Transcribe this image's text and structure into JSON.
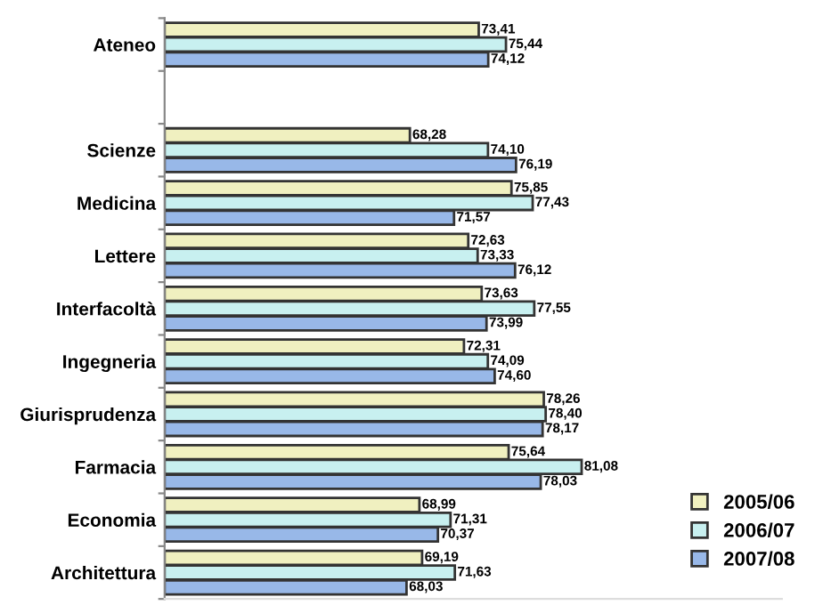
{
  "chart_data": {
    "type": "bar",
    "orientation": "horizontal",
    "categories": [
      "Ateneo",
      null,
      "Scienze",
      "Medicina",
      "Lettere",
      "Interfacoltà",
      "Ingegneria",
      "Giurisprudenza",
      "Farmacia",
      "Economia",
      "Architettura"
    ],
    "xlim": [
      50,
      96
    ],
    "tick_labels": "y",
    "grid": false,
    "legend": "bottom right",
    "series": [
      {
        "name": "2005/06",
        "color": "#f0f0c0",
        "values": [
          73.41,
          null,
          68.28,
          75.85,
          72.63,
          73.63,
          72.31,
          78.26,
          75.64,
          68.99,
          69.19
        ],
        "value_labels": [
          "73,41",
          null,
          "68,28",
          "75,85",
          "72,63",
          "73,63",
          "72,31",
          "78,26",
          "75,64",
          "68,99",
          "69,19"
        ]
      },
      {
        "name": "2006/07",
        "color": "#c8f0f0",
        "values": [
          75.44,
          null,
          74.1,
          77.43,
          73.33,
          77.55,
          74.09,
          78.4,
          81.08,
          71.31,
          71.63
        ],
        "value_labels": [
          "75,44",
          null,
          "74,10",
          "77,43",
          "73,33",
          "77,55",
          "74,09",
          "78,40",
          "81,08",
          "71,31",
          "71,63"
        ]
      },
      {
        "name": "2007/08",
        "color": "#98b8e8",
        "values": [
          74.12,
          null,
          76.19,
          71.57,
          76.12,
          73.99,
          74.6,
          78.17,
          78.03,
          70.37,
          68.03
        ],
        "value_labels": [
          "74,12",
          null,
          "76,19",
          "71,57",
          "76,12",
          "73,99",
          "74,60",
          "78,17",
          "78,03",
          "70,37",
          "68,03"
        ]
      }
    ]
  }
}
